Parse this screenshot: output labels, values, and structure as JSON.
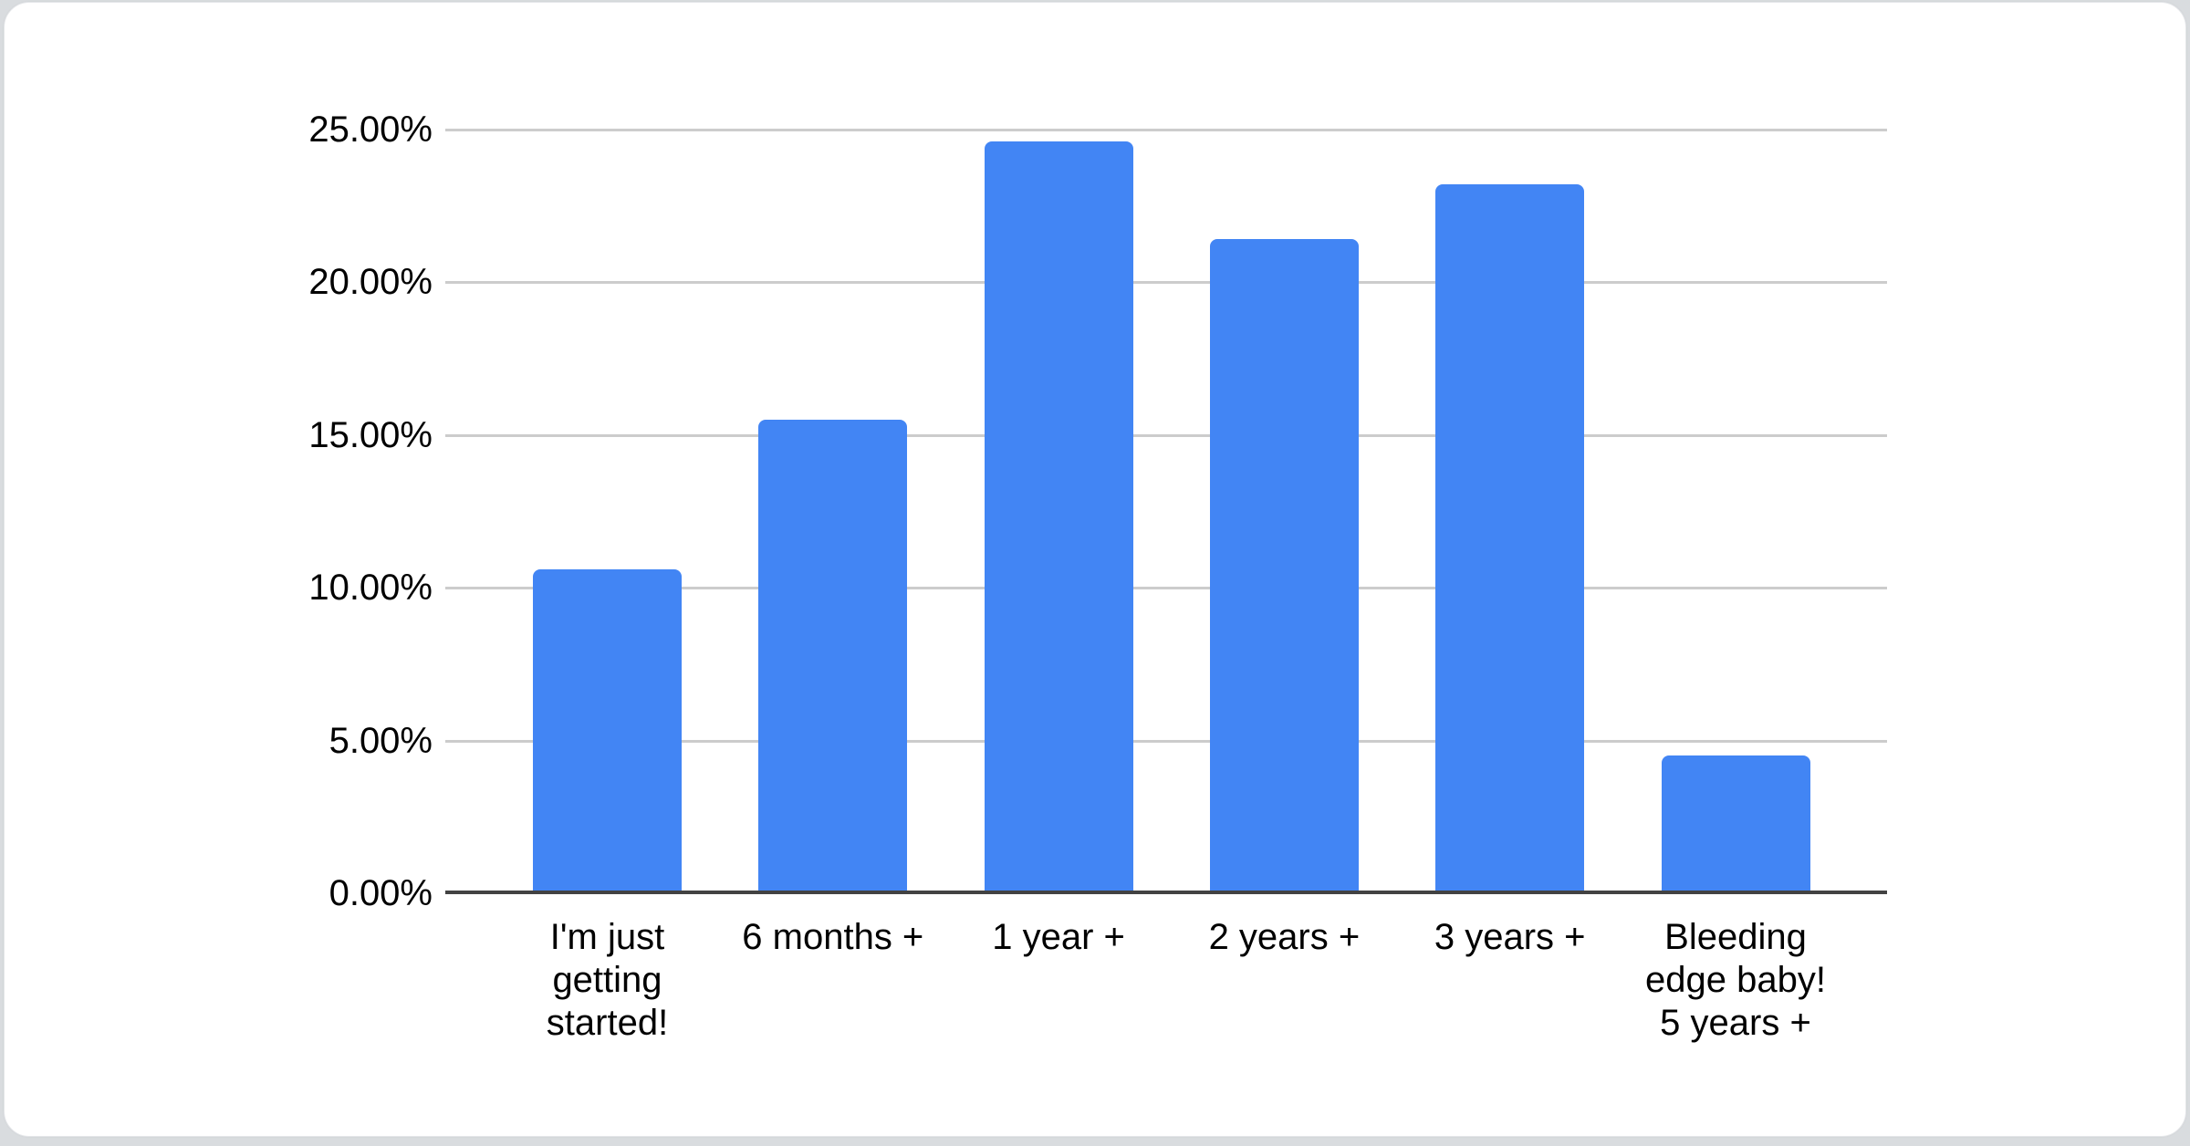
{
  "page": {
    "background_color": "#d9dcdf",
    "card_background_color": "#ffffff"
  },
  "chart_data": {
    "type": "bar",
    "title": "",
    "categories": [
      "I'm just getting started!",
      "6 months +",
      "1 year +",
      "2 years +",
      "3 years +",
      "Bleeding edge baby! 5 years +"
    ],
    "category_display_lines": [
      [
        "I'm just",
        "getting",
        "started!"
      ],
      [
        "6 months +"
      ],
      [
        "1 year +"
      ],
      [
        "2 years +"
      ],
      [
        "3 years +"
      ],
      [
        "Bleeding",
        "edge baby!",
        "5 years +"
      ]
    ],
    "values": [
      10.6,
      15.5,
      24.6,
      21.4,
      23.2,
      4.5
    ],
    "value_unit": "%",
    "xlabel": "",
    "ylabel": "",
    "y_ticks": [
      "0.00%",
      "5.00%",
      "10.00%",
      "15.00%",
      "20.00%",
      "25.00%"
    ],
    "ylim": [
      0,
      25
    ],
    "grid": "horizontal",
    "legend_position": "none",
    "bar_color": "#4285F4",
    "gridline_color": "#cccccc",
    "axis_line_color": "#424242",
    "text_color": "#000000"
  }
}
